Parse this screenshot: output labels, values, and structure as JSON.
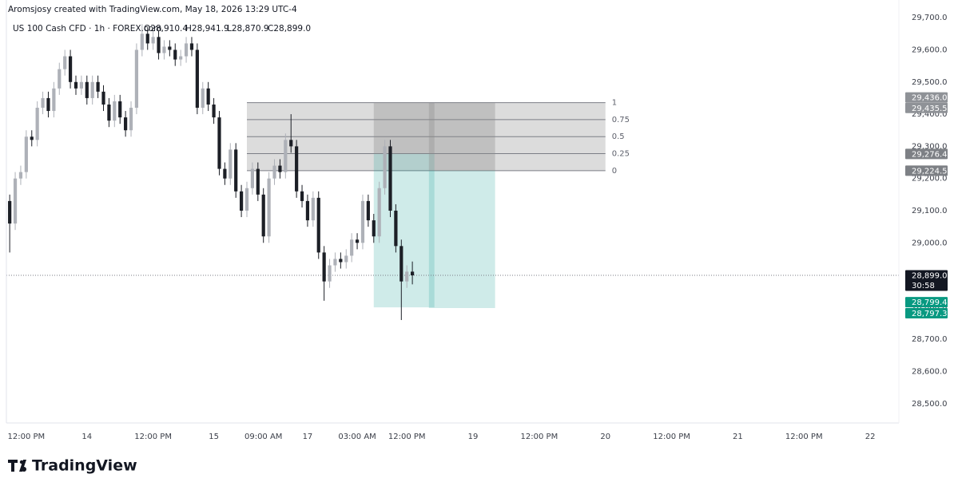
{
  "chart_data": {
    "type": "candlestick",
    "subtitle": "Aromsjosy created with TradingView.com, May 18, 2026 13:29 UTC-4",
    "title": "US 100 Cash CFD · 1h · FOREX.com",
    "ohlc_labels": [
      "O28,910.4",
      "H28,941.9",
      "L28,870.9",
      "C28,899.0"
    ],
    "up_color": "#aeb1b8",
    "down_color": "#1c1f26",
    "grid": false,
    "candles": {
      "open": [
        29130,
        29060,
        29200,
        29220,
        29330,
        29320,
        29420,
        29450,
        29410,
        29480,
        29540,
        29580,
        29500,
        29480,
        29500,
        29450,
        29500,
        29470,
        29430,
        29380,
        29440,
        29390,
        29350,
        29420,
        29600,
        29650,
        29620,
        29640,
        29590,
        29610,
        29600,
        29570,
        29580,
        29620,
        29600,
        29420,
        29480,
        29430,
        29390,
        29230,
        29200,
        29290,
        29160,
        29100,
        29170,
        29230,
        29150,
        29020,
        29200,
        29240,
        29220,
        29320,
        29300,
        29160,
        29130,
        29070,
        29140,
        28970,
        28880,
        28930,
        28950,
        28940,
        28960,
        29010,
        29000,
        29130,
        29070,
        29020,
        29170,
        29300,
        29100,
        28990,
        28880,
        28910.4
      ],
      "high": [
        29150,
        29220,
        29240,
        29350,
        29350,
        29440,
        29470,
        29470,
        29500,
        29560,
        29600,
        29600,
        29520,
        29520,
        29520,
        29520,
        29520,
        29490,
        29450,
        29460,
        29460,
        29410,
        29440,
        29620,
        29680,
        29670,
        29660,
        29660,
        29630,
        29630,
        29620,
        29600,
        29640,
        29640,
        29620,
        29500,
        29500,
        29450,
        29410,
        29250,
        29310,
        29310,
        29180,
        29190,
        29250,
        29250,
        29170,
        29220,
        29260,
        29260,
        29340,
        29400,
        29320,
        29180,
        29150,
        29160,
        29160,
        28990,
        28950,
        28970,
        28970,
        28980,
        29030,
        29030,
        29150,
        29150,
        29090,
        29190,
        29320,
        29320,
        29120,
        29010,
        28930,
        28941.9
      ],
      "low": [
        28970,
        29040,
        29180,
        29200,
        29300,
        29300,
        29400,
        29390,
        29390,
        29460,
        29520,
        29480,
        29460,
        29460,
        29430,
        29430,
        29450,
        29410,
        29360,
        29360,
        29370,
        29330,
        29330,
        29400,
        29580,
        29600,
        29600,
        29570,
        29570,
        29580,
        29550,
        29550,
        29560,
        29580,
        29400,
        29400,
        29410,
        29370,
        29210,
        29180,
        29180,
        29140,
        29080,
        29080,
        29150,
        29130,
        29000,
        29000,
        29180,
        29200,
        29200,
        29280,
        29140,
        29110,
        29050,
        29050,
        28950,
        28820,
        28860,
        28910,
        28920,
        28920,
        28940,
        28980,
        28980,
        29050,
        29000,
        29000,
        29150,
        29080,
        28970,
        28760,
        28860,
        28870.9
      ],
      "close": [
        29060,
        29200,
        29220,
        29330,
        29320,
        29420,
        29450,
        29410,
        29480,
        29540,
        29580,
        29500,
        29480,
        29500,
        29450,
        29500,
        29470,
        29430,
        29380,
        29440,
        29390,
        29350,
        29420,
        29600,
        29650,
        29620,
        29640,
        29590,
        29610,
        29600,
        29570,
        29580,
        29620,
        29600,
        29420,
        29480,
        29430,
        29390,
        29230,
        29200,
        29290,
        29160,
        29100,
        29170,
        29230,
        29150,
        29020,
        29200,
        29240,
        29220,
        29320,
        29300,
        29160,
        29130,
        29070,
        29140,
        28970,
        28880,
        28930,
        28950,
        28940,
        28960,
        29010,
        29000,
        29130,
        29070,
        29020,
        29170,
        29300,
        29100,
        28990,
        28880,
        28910.4,
        28899.0
      ]
    },
    "xlim": [
      -0.6,
      161.2
    ],
    "xticks": [
      {
        "value": 3,
        "label": "12:00 PM"
      },
      {
        "value": 14,
        "label": "14"
      },
      {
        "value": 26,
        "label": "12:00 PM"
      },
      {
        "value": 37,
        "label": "15"
      },
      {
        "value": 46,
        "label": "09:00 AM"
      },
      {
        "value": 54,
        "label": "17"
      },
      {
        "value": 63,
        "label": "03:00 AM"
      },
      {
        "value": 72,
        "label": "12:00 PM"
      },
      {
        "value": 84,
        "label": "19"
      },
      {
        "value": 96,
        "label": "12:00 PM"
      },
      {
        "value": 108,
        "label": "20"
      },
      {
        "value": 120,
        "label": "12:00 PM"
      },
      {
        "value": 132,
        "label": "21"
      },
      {
        "value": 144,
        "label": "12:00 PM"
      },
      {
        "value": 156,
        "label": "22"
      }
    ],
    "ylim": [
      28440,
      29755
    ],
    "yticks": [
      {
        "value": 28500,
        "label": "28,500.0"
      },
      {
        "value": 28600,
        "label": "28,600.0"
      },
      {
        "value": 28700,
        "label": "28,700.0"
      },
      {
        "value": 28800,
        "label": "28,800.0"
      },
      {
        "value": 28900,
        "label": "28,900.0"
      },
      {
        "value": 29000,
        "label": "29,000.0"
      },
      {
        "value": 29100,
        "label": "29,100.0"
      },
      {
        "value": 29200,
        "label": "29,200.0"
      },
      {
        "value": 29300,
        "label": "29,300.0"
      },
      {
        "value": 29400,
        "label": "29,400.0"
      },
      {
        "value": 29500,
        "label": "29,500.0"
      },
      {
        "value": 29600,
        "label": "29,600.0"
      },
      {
        "value": 29700,
        "label": "29,700.0"
      }
    ],
    "last_price_label": "28,899.0",
    "countdown": "30:58",
    "fib": {
      "start": 43,
      "end": 108,
      "price_0": 29224.5,
      "price_1": 29436.0,
      "levels": [
        1,
        0.75,
        0.5,
        0.25,
        0
      ]
    },
    "positions": [
      {
        "start": 66,
        "end": 77,
        "entry": {
          "value": 29276.4,
          "label": "29,276.4"
        },
        "stop": {
          "value": 29436.0,
          "label": "29,436.0"
        },
        "target": {
          "value": 28799.4,
          "label": "28,799.4"
        }
      },
      {
        "start": 76,
        "end": 88,
        "entry": {
          "value": 29224.5,
          "label": "29,224.5"
        },
        "stop": {
          "value": 29435.5,
          "label": "29,435.5"
        },
        "target": {
          "value": 28797.3,
          "label": "28,797.3"
        }
      }
    ]
  },
  "footer": {
    "brand": "TradingView"
  }
}
